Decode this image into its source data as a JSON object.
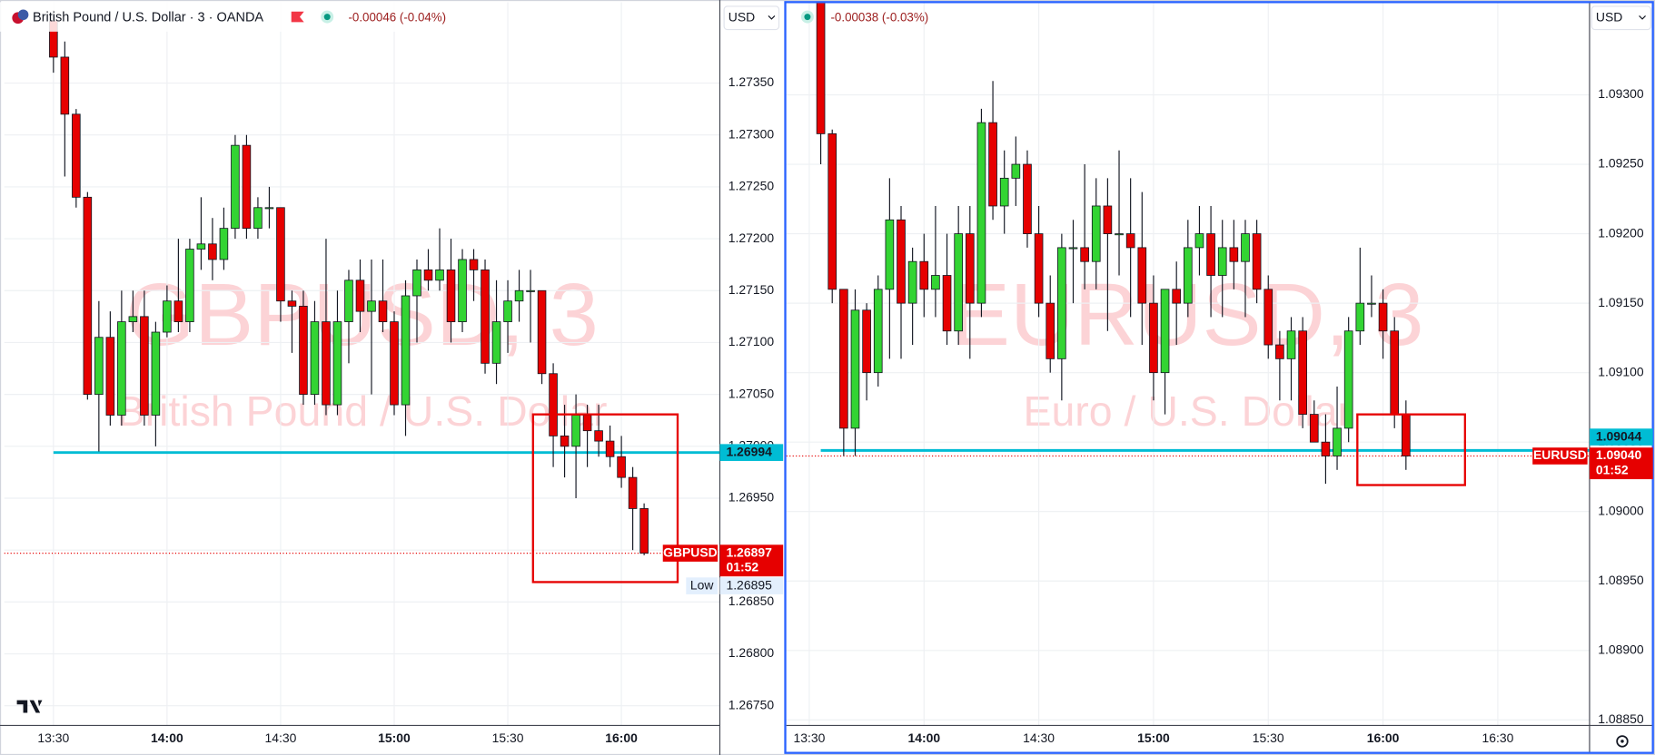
{
  "chart_data": [
    {
      "type": "candlestick",
      "title": "British Pound / U.S. Dollar · 3 · OANDA",
      "change": "-0.00046 (-0.04%)",
      "watermark": "GBPUSD, 3",
      "watermark_sub": "British Pound / U.S. Dollar",
      "currency": "USD",
      "symbol": "GBPUSD",
      "countdown": "01:52",
      "up_color": "#33d433",
      "down_color": "#e60000",
      "grid": true,
      "xlim": [
        "13:17",
        "16:26"
      ],
      "xticks": [
        "13:30",
        "14:00",
        "14:30",
        "15:00",
        "15:30",
        "16:00"
      ],
      "ylim": [
        1.26731,
        1.27428
      ],
      "yticks": [
        {
          "value": 1.2675,
          "label": "1.26750"
        },
        {
          "value": 1.268,
          "label": "1.26800"
        },
        {
          "value": 1.2685,
          "label": "1.26850"
        },
        {
          "value": 1.269,
          "label": "1.26900"
        },
        {
          "value": 1.2695,
          "label": "1.26950"
        },
        {
          "value": 1.27,
          "label": "1.27000"
        },
        {
          "value": 1.2705,
          "label": "1.27050"
        },
        {
          "value": 1.271,
          "label": "1.27100"
        },
        {
          "value": 1.2715,
          "label": "1.27150"
        },
        {
          "value": 1.272,
          "label": "1.27200"
        },
        {
          "value": 1.2725,
          "label": "1.27250"
        },
        {
          "value": 1.273,
          "label": "1.27300"
        },
        {
          "value": 1.2735,
          "label": "1.27350"
        }
      ],
      "hline": {
        "value": 1.26994,
        "label": "1.26994"
      },
      "last_price": {
        "value": 1.26897,
        "label": "1.26897"
      },
      "session_low": {
        "text": "Low",
        "value": 1.26895,
        "label": "1.26895"
      },
      "x": [
        "13:30",
        "13:33",
        "13:36",
        "13:39",
        "13:42",
        "13:45",
        "13:48",
        "13:51",
        "13:54",
        "13:57",
        "14:00",
        "14:03",
        "14:06",
        "14:09",
        "14:12",
        "14:15",
        "14:18",
        "14:21",
        "14:24",
        "14:27",
        "14:30",
        "14:33",
        "14:36",
        "14:39",
        "14:42",
        "14:45",
        "14:48",
        "14:51",
        "14:54",
        "14:57",
        "15:00",
        "15:03",
        "15:06",
        "15:09",
        "15:12",
        "15:15",
        "15:18",
        "15:21",
        "15:24",
        "15:27",
        "15:30",
        "15:33",
        "15:36",
        "15:39",
        "15:42",
        "15:45",
        "15:48",
        "15:51",
        "15:54",
        "15:57",
        "16:00",
        "16:03",
        "16:06"
      ],
      "open": [
        1.2741,
        1.27375,
        1.2732,
        1.2724,
        1.2705,
        1.27105,
        1.2703,
        1.2712,
        1.27125,
        1.2703,
        1.2711,
        1.2714,
        1.2712,
        1.2719,
        1.27195,
        1.2718,
        1.2721,
        1.2729,
        1.2721,
        1.2723,
        1.2723,
        1.2714,
        1.27135,
        1.2705,
        1.2712,
        1.2704,
        1.2712,
        1.2716,
        1.2713,
        1.2714,
        1.2712,
        1.2704,
        1.27145,
        1.2717,
        1.2716,
        1.2717,
        1.2712,
        1.2718,
        1.2717,
        1.2708,
        1.2712,
        1.2714,
        1.2715,
        1.2715,
        1.2707,
        1.2701,
        1.27,
        1.2703,
        1.27015,
        1.27005,
        1.2699,
        1.2697,
        1.2694
      ],
      "high": [
        1.2742,
        1.2739,
        1.27325,
        1.27245,
        1.2714,
        1.2713,
        1.2715,
        1.2715,
        1.2715,
        1.2712,
        1.27155,
        1.272,
        1.272,
        1.2724,
        1.2722,
        1.2723,
        1.273,
        1.273,
        1.2724,
        1.2725,
        1.2723,
        1.2715,
        1.2715,
        1.2714,
        1.272,
        1.2715,
        1.2717,
        1.2718,
        1.2718,
        1.2718,
        1.2713,
        1.2716,
        1.2718,
        1.2719,
        1.2721,
        1.272,
        1.2719,
        1.2719,
        1.2718,
        1.2716,
        1.2716,
        1.2717,
        1.2717,
        1.2715,
        1.2708,
        1.2704,
        1.2705,
        1.2704,
        1.2704,
        1.2702,
        1.2701,
        1.2698,
        1.26945
      ],
      "low": [
        1.2736,
        1.2726,
        1.2723,
        1.27045,
        1.26995,
        1.2702,
        1.2702,
        1.2711,
        1.2702,
        1.27,
        1.27105,
        1.2711,
        1.2711,
        1.2717,
        1.2716,
        1.2717,
        1.272,
        1.272,
        1.272,
        1.2721,
        1.2712,
        1.2709,
        1.2704,
        1.2704,
        1.2703,
        1.2703,
        1.2708,
        1.2711,
        1.2705,
        1.2711,
        1.2703,
        1.2701,
        1.271,
        1.2715,
        1.2715,
        1.271,
        1.2711,
        1.2714,
        1.2707,
        1.2706,
        1.2709,
        1.2712,
        1.271,
        1.2706,
        1.2698,
        1.2697,
        1.2695,
        1.2698,
        1.2699,
        1.2698,
        1.2696,
        1.269,
        1.26895
      ],
      "close": [
        1.27375,
        1.2732,
        1.2724,
        1.2705,
        1.27105,
        1.2703,
        1.2712,
        1.27125,
        1.2703,
        1.2711,
        1.2714,
        1.2712,
        1.2719,
        1.27195,
        1.2718,
        1.2721,
        1.2729,
        1.2721,
        1.2723,
        1.2723,
        1.2714,
        1.27135,
        1.2705,
        1.2712,
        1.2704,
        1.2712,
        1.2716,
        1.2713,
        1.2714,
        1.2712,
        1.2704,
        1.27145,
        1.2717,
        1.2716,
        1.2717,
        1.2712,
        1.2718,
        1.2717,
        1.2708,
        1.2712,
        1.2714,
        1.2715,
        1.2715,
        1.2707,
        1.2701,
        1.27,
        1.2703,
        1.27015,
        1.27005,
        1.2699,
        1.2697,
        1.2694,
        1.26897
      ]
    },
    {
      "type": "candlestick",
      "change": "-0.00038 (-0.03%)",
      "watermark": "EURUSD, 3",
      "watermark_sub": "Euro / U.S. Dollar",
      "currency": "USD",
      "symbol": "EURUSD",
      "countdown": "01:52",
      "up_color": "#33d433",
      "down_color": "#e60000",
      "grid": true,
      "xlim": [
        "13:24",
        "16:54"
      ],
      "xticks": [
        "13:30",
        "14:00",
        "14:30",
        "15:00",
        "15:30",
        "16:00",
        "16:30"
      ],
      "ylim": [
        1.08846,
        1.09366
      ],
      "yticks": [
        {
          "value": 1.0885,
          "label": "1.08850"
        },
        {
          "value": 1.089,
          "label": "1.08900"
        },
        {
          "value": 1.0895,
          "label": "1.08950"
        },
        {
          "value": 1.09,
          "label": "1.09000"
        },
        {
          "value": 1.0905,
          "label": "1.09050"
        },
        {
          "value": 1.091,
          "label": "1.09100"
        },
        {
          "value": 1.0915,
          "label": "1.09150"
        },
        {
          "value": 1.092,
          "label": "1.09200"
        },
        {
          "value": 1.0925,
          "label": "1.09250"
        },
        {
          "value": 1.093,
          "label": "1.09300"
        }
      ],
      "hline": {
        "value": 1.09044,
        "label": "1.09044"
      },
      "last_price": {
        "value": 1.0904,
        "label": "1.09040"
      },
      "x": [
        "13:33",
        "13:36",
        "13:39",
        "13:42",
        "13:45",
        "13:48",
        "13:51",
        "13:54",
        "13:57",
        "14:00",
        "14:03",
        "14:06",
        "14:09",
        "14:12",
        "14:15",
        "14:18",
        "14:21",
        "14:24",
        "14:27",
        "14:30",
        "14:33",
        "14:36",
        "14:39",
        "14:42",
        "14:45",
        "14:48",
        "14:51",
        "14:54",
        "14:57",
        "15:00",
        "15:03",
        "15:06",
        "15:09",
        "15:12",
        "15:15",
        "15:18",
        "15:21",
        "15:24",
        "15:27",
        "15:30",
        "15:33",
        "15:36",
        "15:39",
        "15:42",
        "15:45",
        "15:48",
        "15:51",
        "15:54",
        "15:57",
        "16:00",
        "16:03",
        "16:06"
      ],
      "open": [
        1.0937,
        1.09272,
        1.0916,
        1.0906,
        1.09145,
        1.091,
        1.0916,
        1.0921,
        1.0915,
        1.0918,
        1.0916,
        1.0917,
        1.0913,
        1.092,
        1.0915,
        1.0928,
        1.0922,
        1.0924,
        1.0925,
        1.092,
        1.0915,
        1.0911,
        1.0919,
        1.0919,
        1.0918,
        1.0922,
        1.092,
        1.092,
        1.0919,
        1.0915,
        1.091,
        1.0916,
        1.0915,
        1.0919,
        1.092,
        1.0917,
        1.0919,
        1.0918,
        1.092,
        1.0916,
        1.0912,
        1.0911,
        1.0913,
        1.0907,
        1.0905,
        1.0904,
        1.0906,
        1.0913,
        1.0915,
        1.0915,
        1.0913,
        1.0907
      ],
      "high": [
        1.0939,
        1.09275,
        1.0916,
        1.0916,
        1.0915,
        1.0917,
        1.0924,
        1.0922,
        1.0919,
        1.092,
        1.0922,
        1.092,
        1.0922,
        1.0922,
        1.0929,
        1.0931,
        1.0926,
        1.0927,
        1.0926,
        1.0922,
        1.0917,
        1.092,
        1.0921,
        1.0925,
        1.0924,
        1.0924,
        1.0926,
        1.0924,
        1.0923,
        1.0917,
        1.0916,
        1.0918,
        1.0921,
        1.0922,
        1.0922,
        1.0921,
        1.0921,
        1.0921,
        1.0921,
        1.0917,
        1.0913,
        1.0914,
        1.0914,
        1.0908,
        1.0907,
        1.0909,
        1.0914,
        1.0919,
        1.0917,
        1.0916,
        1.0914,
        1.0908
      ],
      "low": [
        1.0925,
        1.0915,
        1.0904,
        1.0904,
        1.0908,
        1.0909,
        1.0911,
        1.0911,
        1.0912,
        1.0914,
        1.0914,
        1.0912,
        1.0912,
        1.0911,
        1.0914,
        1.0921,
        1.092,
        1.0922,
        1.0919,
        1.0914,
        1.091,
        1.0908,
        1.0915,
        1.0916,
        1.0916,
        1.0913,
        1.0917,
        1.0914,
        1.0912,
        1.0908,
        1.0907,
        1.0912,
        1.0914,
        1.0917,
        1.0914,
        1.0914,
        1.0916,
        1.0914,
        1.0915,
        1.0911,
        1.0908,
        1.0908,
        1.0906,
        1.0905,
        1.0902,
        1.0903,
        1.0905,
        1.0912,
        1.0914,
        1.0911,
        1.0906,
        1.0903
      ],
      "close": [
        1.09272,
        1.0916,
        1.0906,
        1.09145,
        1.091,
        1.0916,
        1.0921,
        1.0915,
        1.0918,
        1.0916,
        1.0917,
        1.0913,
        1.092,
        1.0915,
        1.0928,
        1.0922,
        1.0924,
        1.0925,
        1.092,
        1.0915,
        1.0911,
        1.0919,
        1.0919,
        1.0918,
        1.0922,
        1.092,
        1.092,
        1.0919,
        1.0915,
        1.091,
        1.0916,
        1.0915,
        1.0919,
        1.092,
        1.0917,
        1.0919,
        1.0918,
        1.092,
        1.0916,
        1.0912,
        1.0911,
        1.0913,
        1.0907,
        1.0905,
        1.0904,
        1.0906,
        1.0913,
        1.0915,
        1.0915,
        1.0913,
        1.0907,
        1.0904
      ]
    }
  ]
}
